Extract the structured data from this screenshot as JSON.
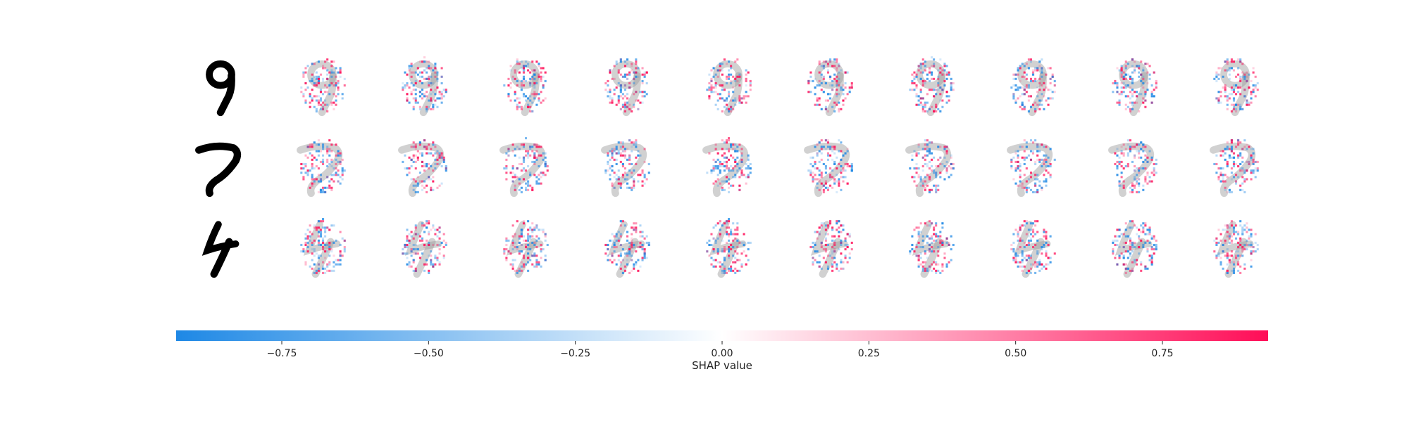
{
  "chart_data": {
    "type": "heatmap",
    "title": "",
    "rows": [
      {
        "input_digit": "9"
      },
      {
        "input_digit": "7"
      },
      {
        "input_digit": "4"
      }
    ],
    "columns_per_row": 10,
    "colorbar": {
      "label": "SHAP value",
      "range": [
        -0.93,
        0.93
      ],
      "ticks": [
        -0.75,
        -0.5,
        -0.25,
        0.0,
        0.25,
        0.5,
        0.75
      ],
      "tick_labels": [
        "−0.75",
        "−0.50",
        "−0.25",
        "0.00",
        "0.25",
        "0.50",
        "0.75"
      ],
      "colors": {
        "negative": "#1E88E5",
        "zero": "#ffffff",
        "positive": "#FF0D57"
      }
    }
  }
}
